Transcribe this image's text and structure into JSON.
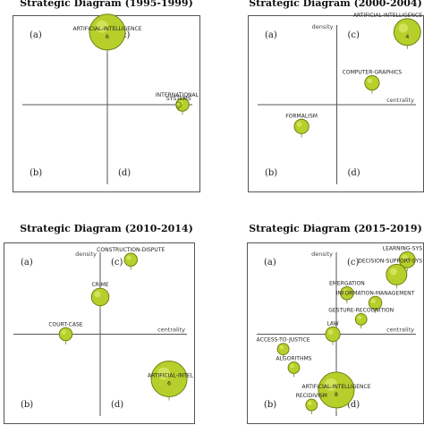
{
  "colors": {
    "bubble_fill": "#b7cf2b",
    "bubble_stroke": "#6f8210",
    "axis": "#555555"
  },
  "chart_data": [
    {
      "type": "scatter",
      "title": "Strategic Diagram (1995-1999)",
      "quadrants": [
        "(a)",
        "(b)",
        "(c)",
        "(d)"
      ],
      "xlabel": "",
      "ylabel": "",
      "points": [
        {
          "label": "ARTIFICIAL-INTELLIGENCE",
          "x": 0.0,
          "y": 1.0,
          "r": 1.0,
          "count": "6"
        },
        {
          "label": "INTERNATIONAL",
          "x": 1.0,
          "y": 0.0,
          "r": 0.25,
          "count": ""
        },
        {
          "label": "SYSTEMS",
          "x": 0.95,
          "y": 0.0,
          "r": 0.0,
          "count": ""
        }
      ]
    },
    {
      "type": "scatter",
      "title": "Strategic Diagram (2000-2004)",
      "quadrants": [
        "(a)",
        "(b)",
        "(c)",
        "(d)"
      ],
      "xlabel": "centrality",
      "ylabel": "density",
      "points": [
        {
          "label": "ARTIFICIAL-INTELLIGENCE",
          "x": 1.0,
          "y": 1.0,
          "r": 0.7,
          "count": "4"
        },
        {
          "label": "COMPUTER-GRAPHICS",
          "x": 0.5,
          "y": 0.3,
          "r": 0.3,
          "count": ""
        },
        {
          "label": "FORMALISM",
          "x": -0.5,
          "y": -0.3,
          "r": 0.3,
          "count": ""
        }
      ]
    },
    {
      "type": "scatter",
      "title": "Strategic Diagram (2010-2014)",
      "quadrants": [
        "(a)",
        "(b)",
        "(c)",
        "(d)"
      ],
      "xlabel": "centrality",
      "ylabel": "density",
      "points": [
        {
          "label": "CONSTRUCTION-DISPUTE",
          "x": 0.4,
          "y": 1.0,
          "r": 0.25,
          "count": ""
        },
        {
          "label": "CRIME",
          "x": 0.0,
          "y": 0.5,
          "r": 0.4,
          "count": ""
        },
        {
          "label": "COURT-CASE",
          "x": -0.45,
          "y": 0.0,
          "r": 0.25,
          "count": ""
        },
        {
          "label": "ARTIFICIAL-INTEL",
          "x": 0.9,
          "y": -0.6,
          "r": 1.0,
          "count": "6"
        }
      ]
    },
    {
      "type": "scatter",
      "title": "Strategic Diagram (2015-2019)",
      "quadrants": [
        "(a)",
        "(b)",
        "(c)",
        "(d)"
      ],
      "xlabel": "centrality",
      "ylabel": "density",
      "points": [
        {
          "label": "LEARNING-SYS",
          "x": 1.0,
          "y": 1.0,
          "r": 0.35,
          "count": ""
        },
        {
          "label": "DECISION-SUPPORT-SYS",
          "x": 0.85,
          "y": 0.8,
          "r": 0.5,
          "count": ""
        },
        {
          "label": "EMERGATION",
          "x": 0.15,
          "y": 0.55,
          "r": 0.25,
          "count": ""
        },
        {
          "label": "INFORMATION-MANAGEMENT",
          "x": 0.55,
          "y": 0.42,
          "r": 0.25,
          "count": ""
        },
        {
          "label": "GESTURE-RECOGNITION",
          "x": 0.35,
          "y": 0.2,
          "r": 0.2,
          "count": ""
        },
        {
          "label": "LAW",
          "x": -0.05,
          "y": 0.0,
          "r": 0.3,
          "count": ""
        },
        {
          "label": "ACCESS-TO-JUSTICE",
          "x": -0.75,
          "y": -0.2,
          "r": 0.2,
          "count": ""
        },
        {
          "label": "ALGORITHMS",
          "x": -0.6,
          "y": -0.45,
          "r": 0.2,
          "count": ""
        },
        {
          "label": "ARTIFICIAL-INTELLIGENCE",
          "x": 0.0,
          "y": -0.75,
          "r": 1.0,
          "count": "8"
        },
        {
          "label": "RECIDIVISM",
          "x": -0.35,
          "y": -0.95,
          "r": 0.2,
          "count": ""
        }
      ]
    }
  ]
}
